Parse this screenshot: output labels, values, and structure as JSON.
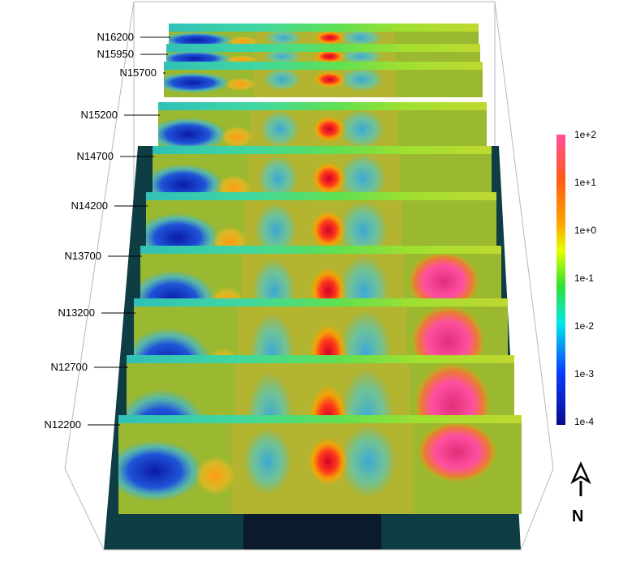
{
  "sections": [
    {
      "label": "N16200"
    },
    {
      "label": "N15950"
    },
    {
      "label": "N15700"
    },
    {
      "label": "N15200"
    },
    {
      "label": "N14700"
    },
    {
      "label": "N14200"
    },
    {
      "label": "N13700"
    },
    {
      "label": "N13200"
    },
    {
      "label": "N12700"
    },
    {
      "label": "N12200"
    }
  ],
  "colorbar": {
    "ticks": [
      "1e+2",
      "1e+1",
      "1e+0",
      "1e-1",
      "1e-2",
      "1e-3",
      "1e-4"
    ],
    "colors": [
      "#ff4fa0",
      "#ff5a1a",
      "#ffa000",
      "#e6ff00",
      "#30e030",
      "#00e8e8",
      "#0a3cff",
      "#0a0a8c"
    ]
  },
  "north_arrow": {
    "label": "N"
  },
  "colors": {
    "ground": "#0f3d44",
    "ground_dark": "#0b1b2d",
    "box_frame": "#b8b8b8"
  }
}
